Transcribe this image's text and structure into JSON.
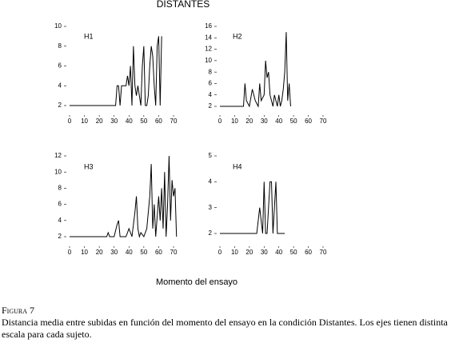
{
  "figure": {
    "title": "DISTANTES",
    "xlabel": "Momento del ensayo",
    "caption_label": "Figura 7",
    "caption": "Distancia media entre subidas en función del momento del ensayo en la condición Distantes. Los ejes tienen distinta escala para cada sujeto."
  },
  "chart_data": [
    {
      "type": "line",
      "title": "H1",
      "xlim": [
        0,
        70
      ],
      "xticks": [
        0,
        10,
        20,
        30,
        40,
        50,
        60,
        70
      ],
      "ylim": [
        2,
        10
      ],
      "yticks": [
        2,
        4,
        6,
        8,
        10
      ],
      "x": [
        0,
        30,
        31,
        32,
        33,
        34,
        35,
        36,
        37,
        38,
        39,
        40,
        41,
        42,
        43,
        44,
        45,
        46,
        47,
        48,
        49,
        50,
        51,
        52,
        53,
        54,
        55,
        56,
        57,
        58,
        59,
        60,
        61,
        62
      ],
      "series": [
        {
          "color": "#000000",
          "values": [
            2,
            2,
            2,
            4,
            4,
            2,
            4,
            4,
            4,
            4,
            5,
            4,
            6,
            2,
            8,
            4,
            3,
            4,
            3,
            2,
            6,
            8,
            2,
            2,
            3,
            6,
            8,
            7,
            4,
            2,
            8,
            9,
            2,
            9
          ]
        }
      ]
    },
    {
      "type": "line",
      "title": "H2",
      "xlim": [
        0,
        70
      ],
      "xticks": [
        0,
        10,
        20,
        30,
        40,
        50,
        60,
        70
      ],
      "ylim": [
        2,
        16
      ],
      "yticks": [
        2,
        4,
        6,
        8,
        10,
        12,
        14,
        16
      ],
      "x": [
        0,
        16,
        17,
        18,
        20,
        22,
        24,
        26,
        27,
        28,
        30,
        31,
        32,
        33,
        34,
        35,
        36,
        37,
        38,
        39,
        40,
        41,
        42,
        43,
        44,
        45,
        46,
        47,
        48
      ],
      "series": [
        {
          "color": "#000000",
          "values": [
            2,
            2,
            6,
            3,
            2,
            5,
            3,
            2,
            6,
            3,
            4,
            10,
            7,
            8,
            4,
            3,
            2,
            4,
            3,
            2,
            4,
            2,
            3,
            5,
            8,
            15,
            3,
            6,
            2
          ]
        }
      ]
    },
    {
      "type": "line",
      "title": "H3",
      "xlim": [
        0,
        70
      ],
      "xticks": [
        0,
        10,
        20,
        30,
        40,
        50,
        60,
        70
      ],
      "ylim": [
        2,
        12
      ],
      "yticks": [
        2,
        4,
        6,
        8,
        10,
        12
      ],
      "x": [
        0,
        25,
        26,
        27,
        30,
        32,
        33,
        34,
        35,
        38,
        40,
        42,
        44,
        45,
        46,
        47,
        48,
        50,
        52,
        54,
        55,
        56,
        57,
        58,
        60,
        61,
        62,
        63,
        64,
        65,
        66,
        67,
        68,
        69,
        70,
        71,
        72
      ],
      "series": [
        {
          "color": "#000000",
          "values": [
            2,
            2,
            2.5,
            2,
            2,
            3.5,
            4,
            2,
            2,
            2,
            3,
            2,
            5,
            7,
            3,
            2,
            2.5,
            2,
            3,
            7,
            11,
            3,
            6,
            2,
            7,
            4,
            8,
            3,
            10,
            2,
            6,
            12,
            4,
            9,
            7,
            8,
            2
          ]
        }
      ]
    },
    {
      "type": "line",
      "title": "H4",
      "xlim": [
        0,
        70
      ],
      "xticks": [
        0,
        10,
        20,
        30,
        40,
        50,
        60,
        70
      ],
      "ylim": [
        2,
        5
      ],
      "yticks": [
        2,
        3,
        4,
        5
      ],
      "x": [
        0,
        25,
        26,
        27,
        28,
        29,
        30,
        31,
        32,
        33,
        34,
        35,
        36,
        37,
        38,
        39,
        40,
        44
      ],
      "series": [
        {
          "color": "#000000",
          "values": [
            2,
            2,
            2.5,
            3,
            2.5,
            2,
            4,
            2,
            2,
            3,
            4,
            4,
            2,
            3,
            4,
            2,
            2,
            2
          ]
        }
      ]
    }
  ]
}
